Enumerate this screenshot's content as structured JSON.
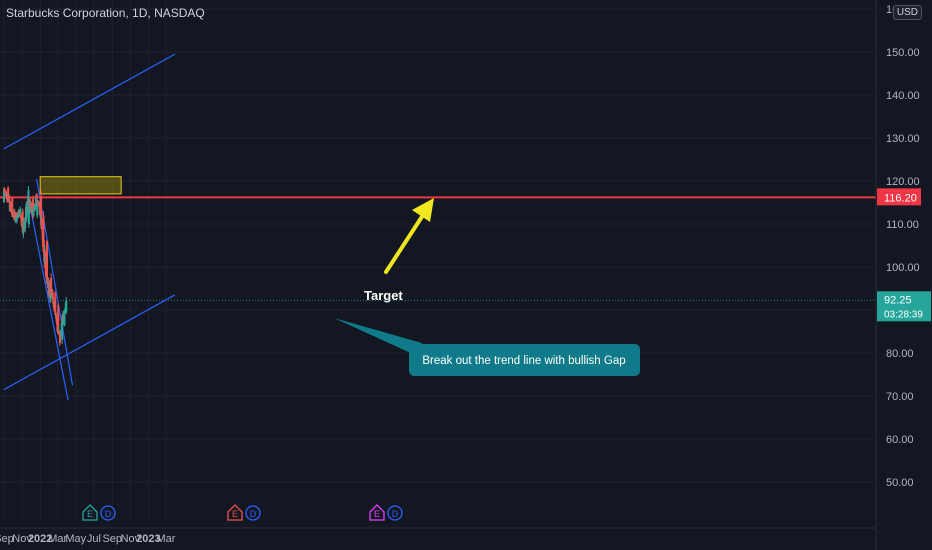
{
  "chart_title": "Starbucks Corporation, 1D, NASDAQ",
  "currency": "USD",
  "price_axis": {
    "ticks": [
      "160.00",
      "150.00",
      "140.00",
      "130.00",
      "120.00",
      "110.00",
      "100.00",
      "90.00",
      "80.00",
      "70.00",
      "60.00",
      "50.00"
    ],
    "resistance_label": "116.20",
    "last_price_label": "92.25",
    "countdown_label": "03:28:39"
  },
  "time_axis": {
    "ticks": [
      "Sep",
      "Nov",
      "2022",
      "Mar",
      "May",
      "Jul",
      "Sep",
      "Nov",
      "2023",
      "Mar"
    ]
  },
  "annotations": {
    "target": "Target",
    "callout": "Break out the trend line with bullish Gap"
  },
  "events": {
    "badges": [
      "E",
      "D",
      "E",
      "D",
      "E",
      "D"
    ]
  },
  "colors": {
    "background": "#131722",
    "grid": "#1e222d",
    "up_candle": "#26a69a",
    "down_candle": "#ef5350",
    "resistance_line": "#f23645",
    "trend_lines": "#2962ff",
    "target_zone": "#c8b400",
    "arrow": "#f2e61f",
    "callout_bg": "#0f7a8a"
  },
  "chart_data": {
    "type": "candlestick",
    "title": "Starbucks Corporation, 1D, NASDAQ",
    "xlabel": "",
    "ylabel": "",
    "y_range": [
      45,
      165
    ],
    "x_range": [
      "2021-09-01",
      "2023-03-31"
    ],
    "grid": true,
    "last_price": 92.25,
    "resistance_level": 116.2,
    "target_zone": {
      "from_date": "2022-01-01",
      "to_date": "2022-10-01",
      "low": 117.0,
      "high": 121.0
    },
    "trend_channel_upper": [
      [
        "2021-09-01",
        127.5
      ],
      [
        "2023-03-31",
        149.5
      ]
    ],
    "trend_channel_lower": [
      [
        "2021-09-01",
        71.5
      ],
      [
        "2023-03-31",
        93.5
      ]
    ],
    "downtrend_upper": [
      [
        "2021-12-20",
        120.5
      ],
      [
        "2022-04-20",
        72.5
      ]
    ],
    "downtrend_lower": [
      [
        "2021-11-20",
        117.0
      ],
      [
        "2022-04-05",
        69.0
      ]
    ],
    "series": [
      {
        "name": "",
        "ohlc": [
          [
            "2021-09-01",
            115.0,
            119.5,
            114.5,
            118.5
          ],
          [
            "2021-09-15",
            118.5,
            120.5,
            115.0,
            116.0
          ],
          [
            "2021-09-29",
            116.0,
            117.5,
            111.0,
            112.5
          ],
          [
            "2021-10-13",
            112.5,
            114.5,
            110.5,
            111.5
          ],
          [
            "2021-10-27",
            111.5,
            115.0,
            109.0,
            113.0
          ],
          [
            "2021-11-03",
            113.0,
            116.5,
            108.0,
            109.5
          ],
          [
            "2021-11-10",
            109.5,
            111.0,
            104.5,
            110.0
          ],
          [
            "2021-11-24",
            110.0,
            118.0,
            109.5,
            116.0
          ],
          [
            "2021-12-08",
            116.0,
            116.5,
            110.0,
            112.0
          ],
          [
            "2021-12-22",
            112.0,
            117.5,
            111.5,
            116.5
          ],
          [
            "2022-01-04",
            116.5,
            118.0,
            111.0,
            112.0
          ],
          [
            "2022-01-12",
            112.0,
            113.0,
            105.0,
            106.0
          ],
          [
            "2022-01-24",
            106.0,
            107.0,
            96.0,
            97.5
          ],
          [
            "2022-02-07",
            97.5,
            99.0,
            92.5,
            94.0
          ],
          [
            "2022-02-21",
            94.0,
            95.0,
            89.0,
            91.0
          ],
          [
            "2022-03-03",
            91.0,
            92.0,
            83.5,
            85.0
          ],
          [
            "2022-03-10",
            85.0,
            87.0,
            80.0,
            83.0
          ],
          [
            "2022-03-16",
            83.0,
            88.0,
            81.5,
            86.5
          ],
          [
            "2022-03-24",
            86.5,
            90.5,
            85.5,
            89.5
          ],
          [
            "2022-03-30",
            89.5,
            93.0,
            89.0,
            92.25
          ]
        ]
      }
    ]
  }
}
